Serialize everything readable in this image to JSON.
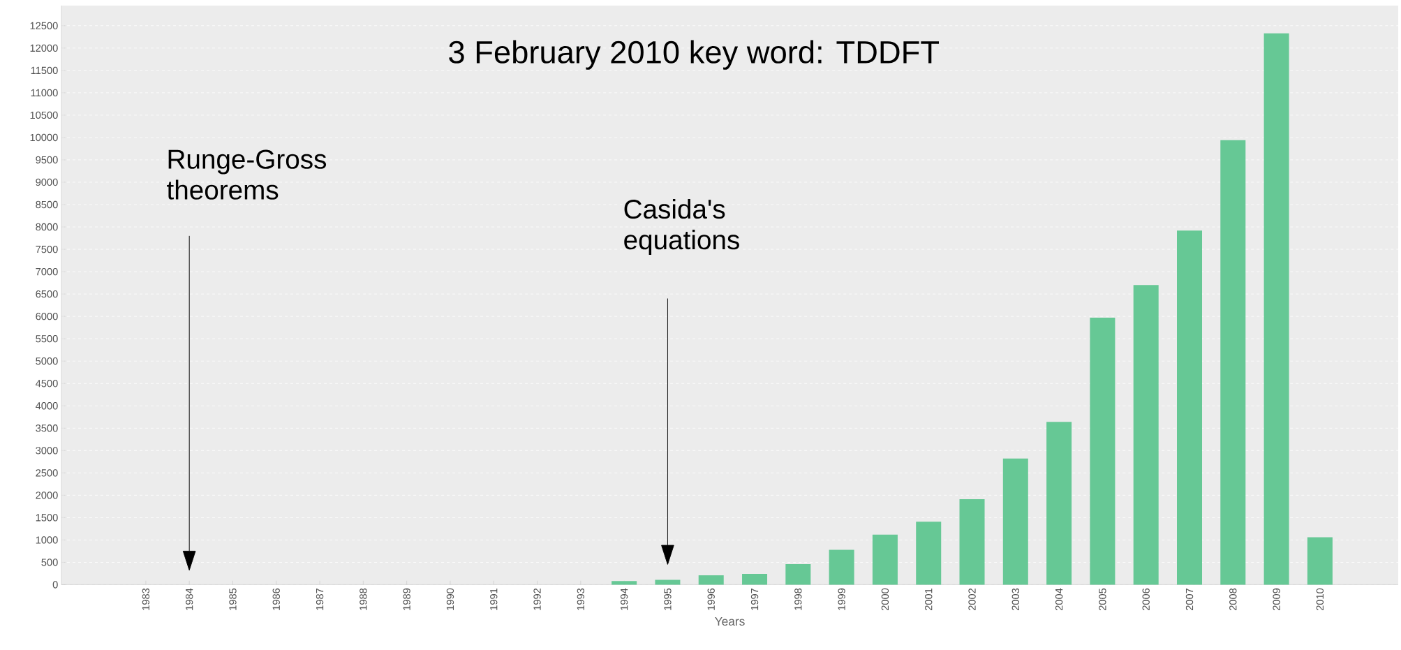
{
  "chart_data": {
    "type": "bar",
    "title": "3 February 2010 key word: TDDFT",
    "xlabel": "Years",
    "categories": [
      "1983",
      "1984",
      "1985",
      "1986",
      "1987",
      "1988",
      "1989",
      "1990",
      "1991",
      "1992",
      "1993",
      "1994",
      "1995",
      "1996",
      "1997",
      "1998",
      "1999",
      "2000",
      "2001",
      "2002",
      "2003",
      "2004",
      "2005",
      "2006",
      "2007",
      "2008",
      "2009",
      "2010"
    ],
    "values": [
      0,
      0,
      0,
      0,
      0,
      0,
      0,
      0,
      0,
      0,
      0,
      80,
      110,
      210,
      240,
      460,
      780,
      1120,
      1410,
      1910,
      2820,
      3640,
      5970,
      6700,
      7920,
      9940,
      12330,
      1060
    ],
    "color": "#66c895",
    "ylim": [
      0,
      12950
    ],
    "yticks": [
      0,
      500,
      1000,
      1500,
      2000,
      2500,
      3000,
      3500,
      4000,
      4500,
      5000,
      5500,
      6000,
      6500,
      7000,
      7500,
      8000,
      8500,
      9000,
      9500,
      10000,
      10500,
      11000,
      11500,
      12000,
      12500
    ],
    "grid": "y",
    "annotations": [
      "Runge-Gross theorems",
      "Casida's equations"
    ]
  }
}
